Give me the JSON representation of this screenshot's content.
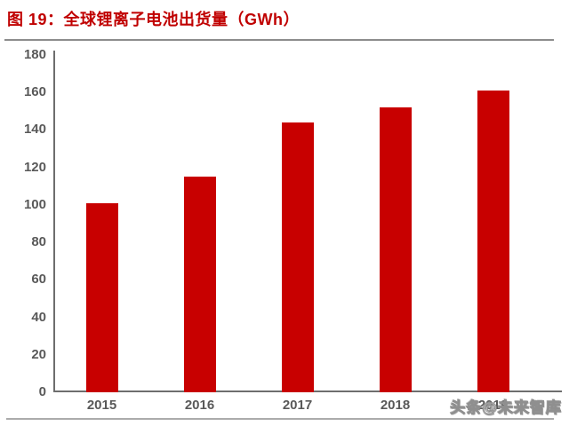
{
  "title": "图 19：全球锂离子电池出货量（GWh）",
  "watermark": "头条@未来智库",
  "colors": {
    "title_red": "#c00000",
    "bar_red": "#c80000",
    "axis_gray": "#6e6e6e",
    "tick_text_gray": "#595959",
    "top_rule_gray": "#8c8c8c",
    "bottom_rule_gray": "#ababab"
  },
  "chart_data": {
    "type": "bar",
    "title": "图 19：全球锂离子电池出货量（GWh）",
    "categories": [
      "2015",
      "2016",
      "2017",
      "2018",
      "2019"
    ],
    "values": [
      101,
      115,
      144,
      152,
      161
    ],
    "unit": "GWh",
    "xlabel": "",
    "ylabel": "",
    "ylim": [
      0,
      180
    ],
    "yticks": [
      0,
      20,
      40,
      60,
      80,
      100,
      120,
      140,
      160,
      180
    ],
    "grid": false,
    "legend": false,
    "bar_color": "#c80000"
  }
}
